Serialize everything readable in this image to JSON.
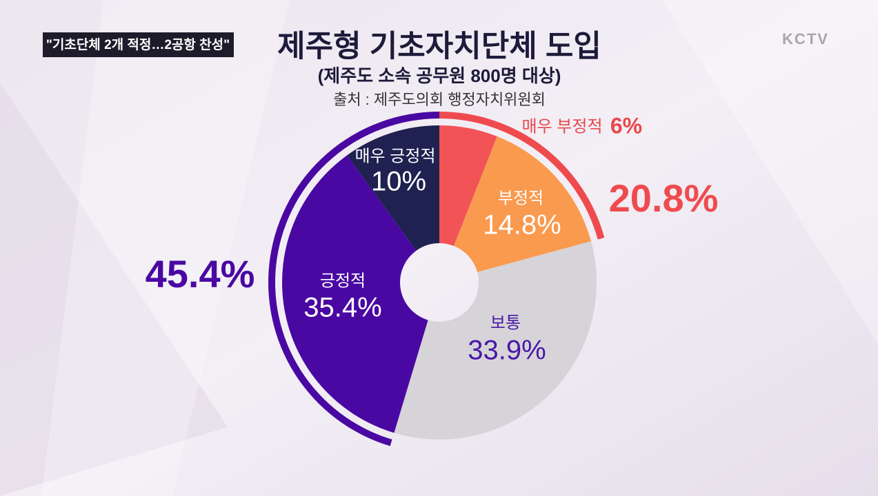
{
  "headline": "\"기초단체 2개 적정…2공항 찬성\"",
  "logo": "KCTV",
  "chart_data": {
    "type": "pie",
    "title": "제주형 기초자치단체 도입",
    "subtitle": "(제주도 소속 공무원 800명 대상)",
    "source": "출처 : 제주도의회 행정자치위원회",
    "categories": [
      "매우 부정적",
      "부정적",
      "보통",
      "긍정적",
      "매우 긍정적"
    ],
    "values": [
      6,
      14.8,
      33.9,
      35.4,
      10
    ],
    "value_labels": [
      "6%",
      "14.8%",
      "33.9%",
      "35.4%",
      "10%"
    ],
    "colors": [
      "#f25356",
      "#f99a4f",
      "#d6d4d8",
      "#4a08a3",
      "#1f2150"
    ],
    "label_colors": [
      "#e8474c",
      "#ffffff",
      "#4a17a6",
      "#ffffff",
      "#ffffff"
    ],
    "groups": [
      {
        "value": 20.8,
        "value_label": "20.8%",
        "color": "#ef4b4f"
      },
      {
        "value": 45.4,
        "value_label": "45.4%",
        "color": "#4a08a3"
      }
    ]
  }
}
